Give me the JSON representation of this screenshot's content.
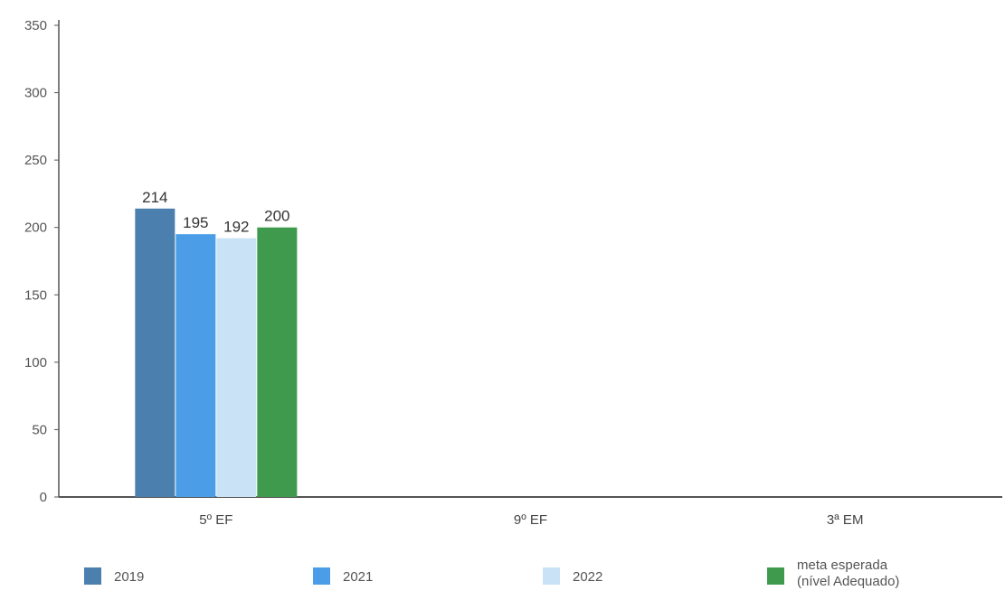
{
  "chart_data": {
    "type": "bar",
    "categories": [
      "5º EF",
      "9º EF",
      "3ª EM"
    ],
    "series": [
      {
        "name": "2019",
        "color": "#4a7fae",
        "values": [
          214,
          null,
          null
        ]
      },
      {
        "name": "2021",
        "color": "#4a9de6",
        "values": [
          195,
          null,
          null
        ]
      },
      {
        "name": "2022",
        "color": "#c9e2f6",
        "values": [
          192,
          null,
          null
        ]
      },
      {
        "name": "meta esperada (nível Adequado)",
        "color": "#3f9a4e",
        "values": [
          200,
          null,
          null
        ]
      }
    ],
    "ylim": [
      0,
      350
    ],
    "yticks": [
      0,
      50,
      100,
      150,
      200,
      250,
      300,
      350
    ],
    "grid": false,
    "legend_position": "bottom",
    "title": "",
    "xlabel": "",
    "ylabel": ""
  },
  "legend": {
    "items": [
      {
        "lines": [
          "2019"
        ]
      },
      {
        "lines": [
          "2021"
        ]
      },
      {
        "lines": [
          "2022"
        ]
      },
      {
        "lines": [
          "meta esperada",
          "(nível Adequado)"
        ]
      }
    ]
  }
}
